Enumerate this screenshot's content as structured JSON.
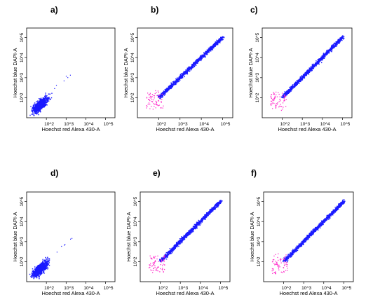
{
  "colors": {
    "population": "#1a1aff",
    "gated_low": "#ff33cc",
    "axes": "#000000",
    "background": "#ffffff"
  },
  "chart_data": [
    {
      "type": "scatter",
      "panel": "a)",
      "xlabel": "Hoechst red Alexa 430-A",
      "ylabel": "Hoechst blue DAPI-A",
      "xscale": "log",
      "yscale": "log",
      "x_ticks": [
        "10^2",
        "10^3",
        "10^4",
        "10^5"
      ],
      "y_ticks": [
        "10^2",
        "10^3",
        "10^4",
        "10^5"
      ],
      "xlim": [
        10,
        300000
      ],
      "ylim": [
        10,
        300000
      ],
      "pattern": "compact-low-diagonal",
      "magenta_population": false
    },
    {
      "type": "scatter",
      "panel": "b)",
      "xlabel": "Hoechst red Alexa 430-A",
      "ylabel": "Hoechst blue DAPI-A",
      "xscale": "log",
      "yscale": "log",
      "x_ticks": [
        "10^2",
        "10^3",
        "10^4",
        "10^5"
      ],
      "y_ticks": [
        "10^2",
        "10^3",
        "10^4",
        "10^5"
      ],
      "xlim": [
        10,
        300000
      ],
      "ylim": [
        10,
        300000
      ],
      "pattern": "long-diagonal",
      "magenta_population": true
    },
    {
      "type": "scatter",
      "panel": "c)",
      "xlabel": "Hoechst red Alexa 430-A",
      "ylabel": "Hoechst blue DAPI-A",
      "xscale": "log",
      "yscale": "log",
      "x_ticks": [
        "10^2",
        "10^3",
        "10^4",
        "10^5"
      ],
      "y_ticks": [
        "10^2",
        "10^3",
        "10^4",
        "10^5"
      ],
      "xlim": [
        10,
        300000
      ],
      "ylim": [
        10,
        300000
      ],
      "pattern": "long-diagonal",
      "magenta_population": true
    },
    {
      "type": "scatter",
      "panel": "d)",
      "xlabel": "Hoechst red Alexa 430-A",
      "ylabel": "Hoechst blue DAPI-A",
      "xscale": "log",
      "yscale": "log",
      "x_ticks": [
        "10^2",
        "10^3",
        "10^4",
        "10^5"
      ],
      "y_ticks": [
        "10^2",
        "10^3",
        "10^4",
        "10^5"
      ],
      "xlim": [
        10,
        300000
      ],
      "ylim": [
        10,
        300000
      ],
      "pattern": "compact-low-diagonal",
      "magenta_population": false
    },
    {
      "type": "scatter",
      "panel": "e)",
      "xlabel": "Hoechst red Alexa 430-A",
      "ylabel": "Hoechst blue DAPI-A",
      "xscale": "log",
      "yscale": "log",
      "x_ticks": [
        "10^2",
        "10^3",
        "10^4",
        "10^5"
      ],
      "y_ticks": [
        "10^2",
        "10^3",
        "10^4",
        "10^5"
      ],
      "xlim": [
        10,
        300000
      ],
      "ylim": [
        10,
        300000
      ],
      "pattern": "long-diagonal",
      "magenta_population": true
    },
    {
      "type": "scatter",
      "panel": "f)",
      "xlabel": "Hoechst red Alexa 430-A",
      "ylabel": "Hoechst blue DAPI-A",
      "xscale": "log",
      "yscale": "log",
      "x_ticks": [
        "10^2",
        "10^3",
        "10^4",
        "10^5"
      ],
      "y_ticks": [
        "10^2",
        "10^3",
        "10^4",
        "10^5"
      ],
      "xlim": [
        10,
        300000
      ],
      "ylim": [
        10,
        300000
      ],
      "pattern": "long-diagonal",
      "magenta_population": true
    }
  ]
}
